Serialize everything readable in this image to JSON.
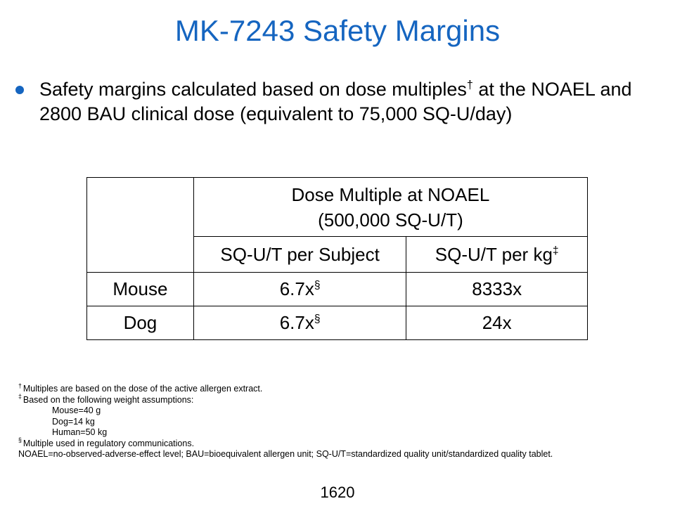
{
  "title": "MK-7243 Safety Margins",
  "bullet": {
    "text_before": "Safety margins calculated based on dose multiples",
    "dagger": "†",
    "text_after": " at the NOAEL and 2800 BAU clinical dose (equivalent to 75,000 SQ-U/day)"
  },
  "table": {
    "group_header_line1": "Dose Multiple at NOAEL",
    "group_header_line2": "(500,000 SQ-U/T)",
    "col_subject": "SQ-U/T per Subject",
    "col_kg": "SQ-U/T per kg",
    "col_kg_mark": "‡",
    "rows": [
      {
        "species": "Mouse",
        "per_subject": "6.7x",
        "per_subject_mark": "§",
        "per_kg": "8333x"
      },
      {
        "species": "Dog",
        "per_subject": "6.7x",
        "per_subject_mark": "§",
        "per_kg": "24x"
      }
    ]
  },
  "footnotes": {
    "note1_mark": "†",
    "note1": "Multiples are based on the dose of the active allergen extract.",
    "note2_mark": "‡",
    "note2": "Based on the following weight assumptions:",
    "weights": [
      "Mouse=40 g",
      "Dog=14 kg",
      "Human=50 kg"
    ],
    "note3_mark": "§",
    "note3": "Multiple used in regulatory communications.",
    "abbrev": "NOAEL=no-observed-adverse-effect level; BAU=bioequivalent allergen unit; SQ-U/T=standardized quality unit/standardized quality tablet."
  },
  "page_number": "1620",
  "colors": {
    "accent": "#1565c0"
  }
}
